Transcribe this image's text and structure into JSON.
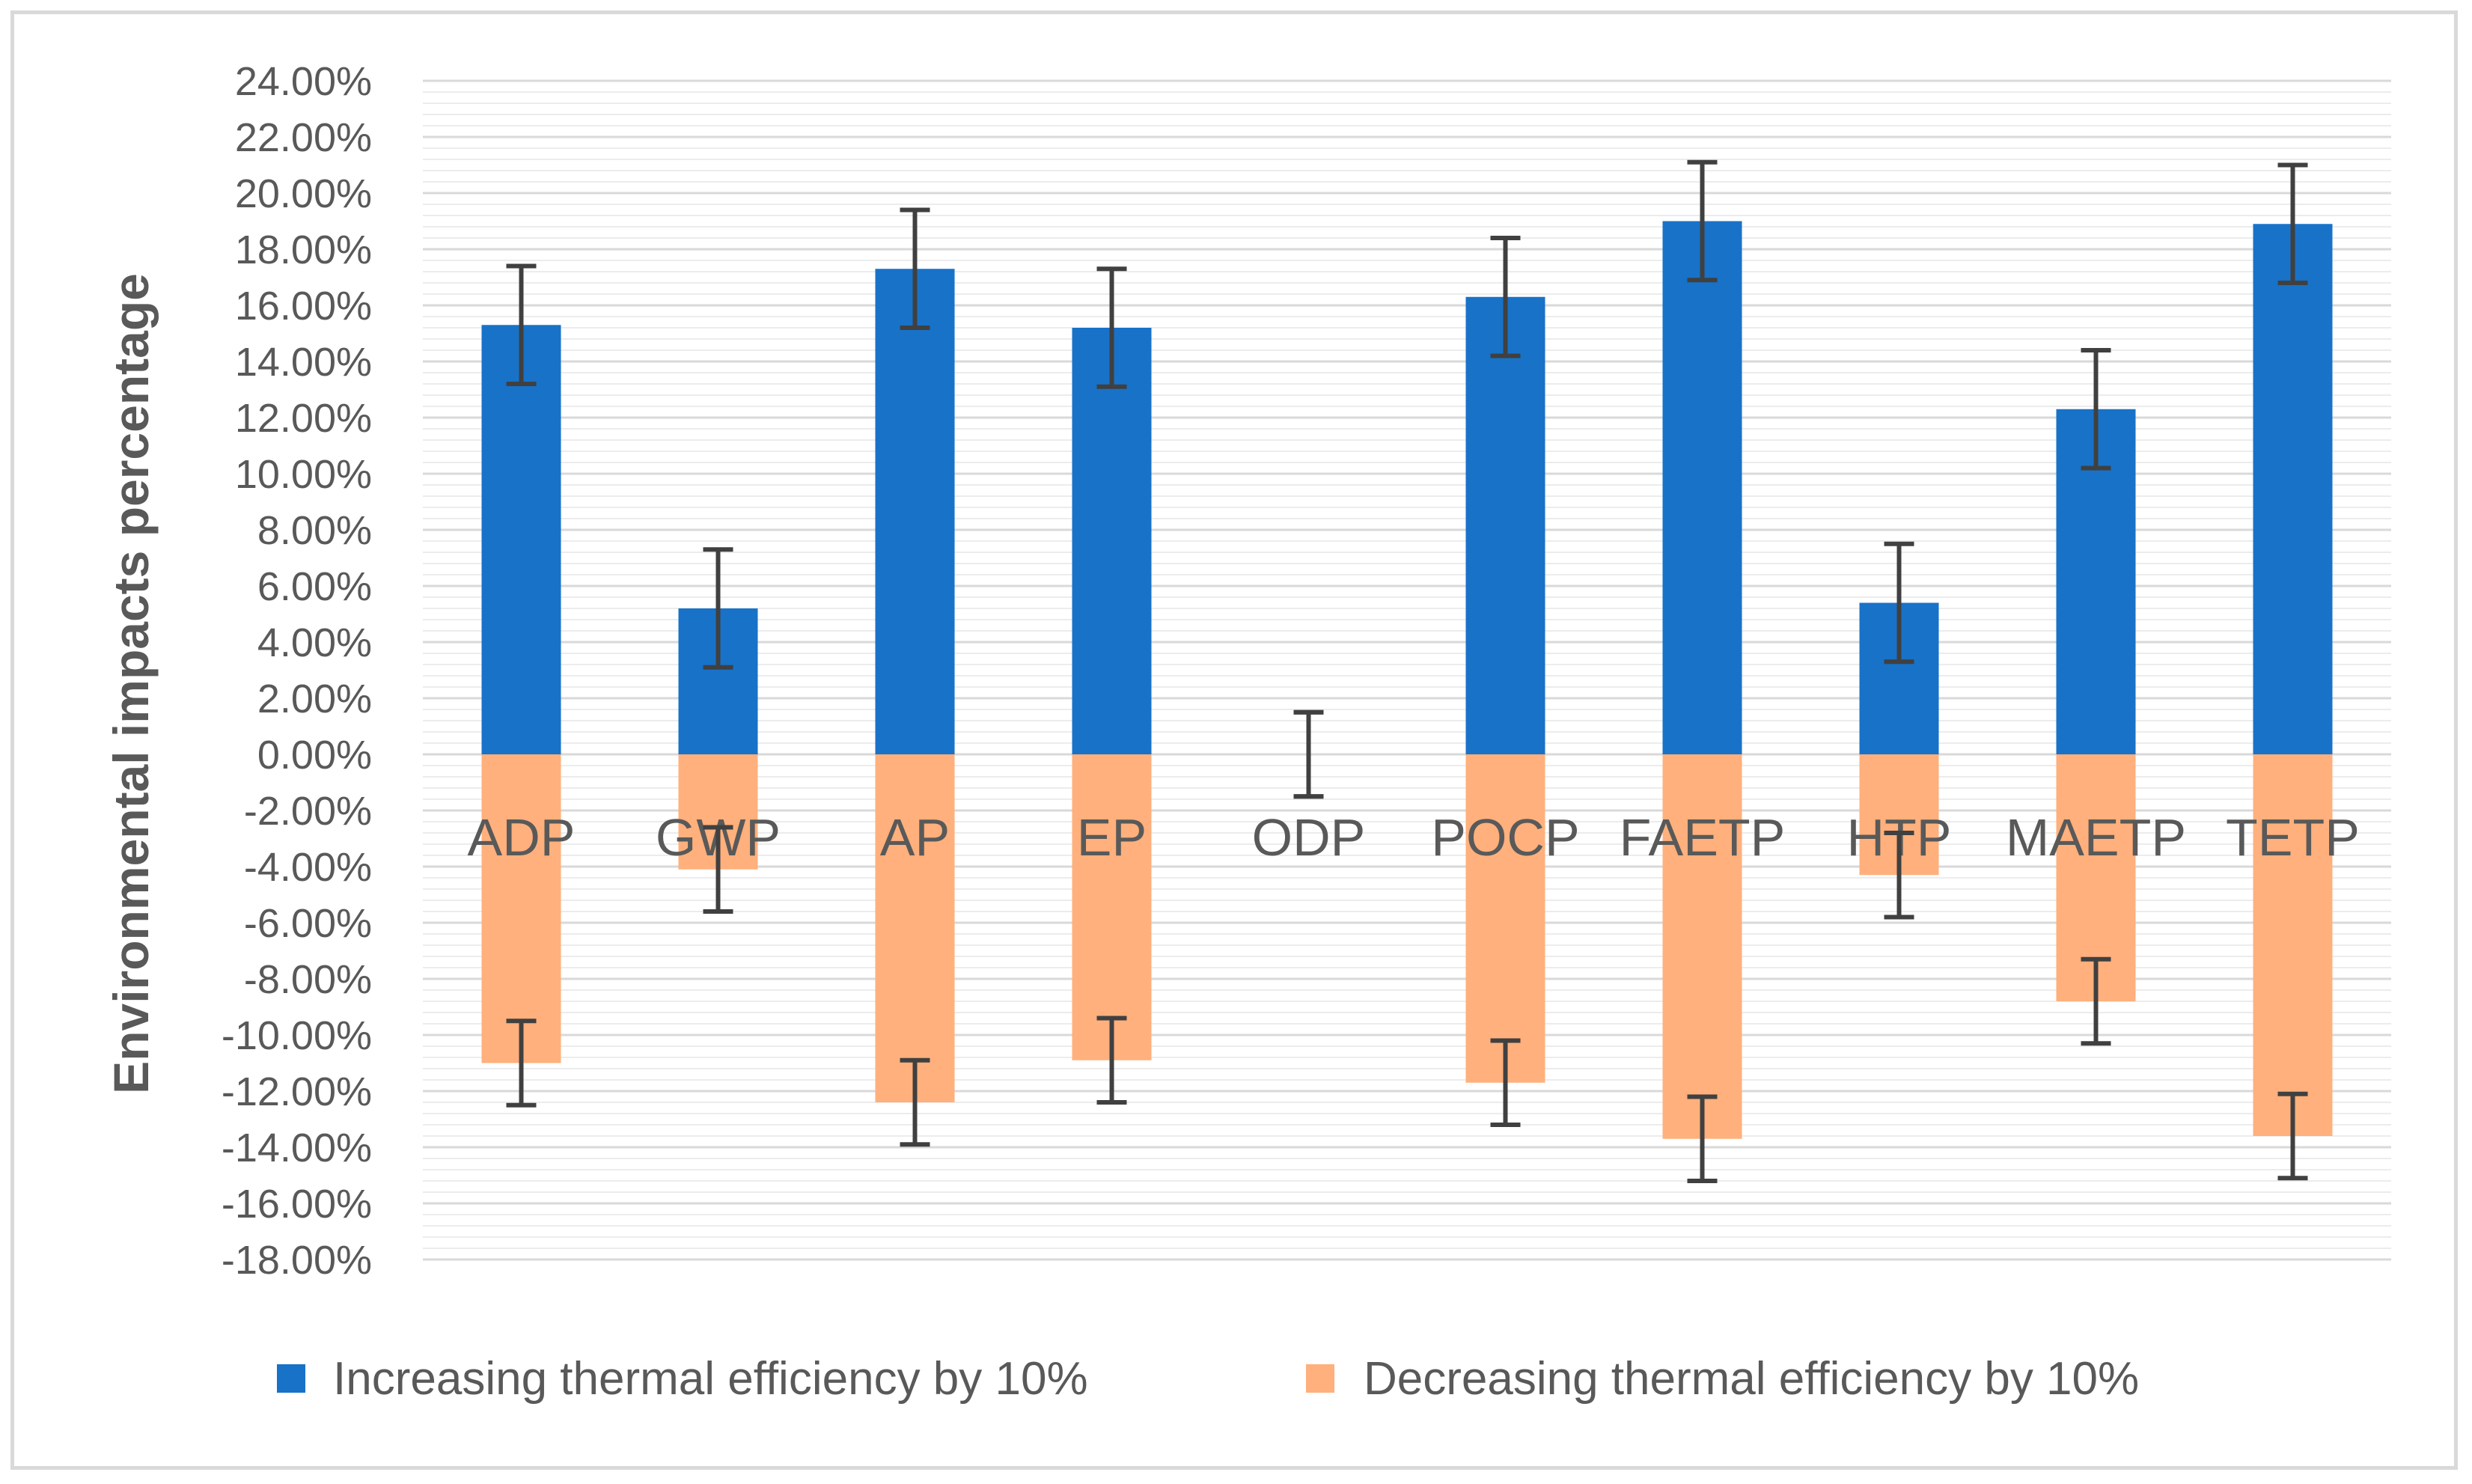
{
  "chart_data": {
    "type": "bar",
    "ylabel": "Environmental impacts percentage",
    "xlabel": "",
    "ylim": [
      -0.18,
      0.24
    ],
    "ytick_step": 0.02,
    "y_tick_format": "percent_2dp",
    "categories": [
      "ADP",
      "GWP",
      "AP",
      "EP",
      "ODP",
      "POCP",
      "FAETP",
      "HTP",
      "MAETP",
      "TETP"
    ],
    "series": [
      {
        "name": "Increasing thermal efficiency by 10%",
        "color": "#1872c8",
        "values": [
          0.153,
          0.052,
          0.173,
          0.152,
          0.0,
          0.163,
          0.19,
          0.054,
          0.123,
          0.189
        ],
        "error": [
          0.021,
          0.021,
          0.021,
          0.021,
          0.015,
          0.021,
          0.021,
          0.021,
          0.021,
          0.021
        ]
      },
      {
        "name": "Decreasing thermal efficiency by 10%",
        "color": "#ffb07c",
        "values": [
          -0.11,
          -0.041,
          -0.124,
          -0.109,
          0.0,
          -0.117,
          -0.137,
          -0.043,
          -0.088,
          -0.136
        ],
        "error": [
          0.015,
          0.015,
          0.015,
          0.015,
          0.015,
          0.015,
          0.015,
          0.015,
          0.015,
          0.015
        ]
      }
    ],
    "legend_position": "bottom",
    "grid": true,
    "error_bars": true
  }
}
